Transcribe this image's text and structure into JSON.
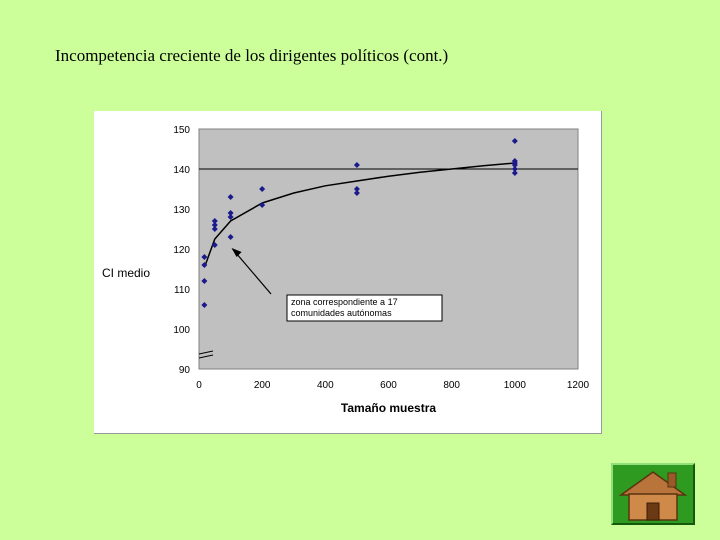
{
  "slide": {
    "title": "Incompetencia creciente de los dirigentes políticos (cont.)"
  },
  "chart_data": {
    "type": "scatter",
    "title": "",
    "xlabel": "Tamaño muestra",
    "ylabel": "CI medio",
    "xlim": [
      0,
      1200
    ],
    "ylim": [
      90,
      150
    ],
    "x_ticks": [
      0,
      200,
      400,
      600,
      800,
      1000,
      1200
    ],
    "y_ticks": [
      90,
      100,
      110,
      120,
      130,
      140,
      150
    ],
    "grid": false,
    "axis_break": true,
    "plot_background": "#c0c0c0",
    "marker_color": "#1a1a8c",
    "series": [
      {
        "points": [
          {
            "x": 17,
            "y": 118
          },
          {
            "x": 17,
            "y": 116
          },
          {
            "x": 17,
            "y": 112
          },
          {
            "x": 17,
            "y": 106
          },
          {
            "x": 50,
            "y": 127
          },
          {
            "x": 50,
            "y": 126
          },
          {
            "x": 50,
            "y": 125
          },
          {
            "x": 50,
            "y": 121
          },
          {
            "x": 100,
            "y": 133
          },
          {
            "x": 100,
            "y": 129
          },
          {
            "x": 100,
            "y": 128
          },
          {
            "x": 100,
            "y": 123
          },
          {
            "x": 200,
            "y": 135
          },
          {
            "x": 200,
            "y": 131
          },
          {
            "x": 500,
            "y": 141
          },
          {
            "x": 500,
            "y": 135
          },
          {
            "x": 500,
            "y": 134
          },
          {
            "x": 1000,
            "y": 147
          },
          {
            "x": 1000,
            "y": 142
          },
          {
            "x": 1000,
            "y": 141.5
          },
          {
            "x": 1000,
            "y": 141
          },
          {
            "x": 1000,
            "y": 140
          },
          {
            "x": 1000,
            "y": 139
          }
        ]
      }
    ],
    "trend_curve": [
      {
        "x": 20,
        "y": 116
      },
      {
        "x": 50,
        "y": 122.5
      },
      {
        "x": 100,
        "y": 127
      },
      {
        "x": 200,
        "y": 131.5
      },
      {
        "x": 300,
        "y": 134
      },
      {
        "x": 400,
        "y": 135.8
      },
      {
        "x": 500,
        "y": 137
      },
      {
        "x": 600,
        "y": 138.2
      },
      {
        "x": 700,
        "y": 139.2
      },
      {
        "x": 800,
        "y": 140
      },
      {
        "x": 900,
        "y": 140.8
      },
      {
        "x": 1000,
        "y": 141.5
      }
    ],
    "reference_line_y": 140,
    "annotation": {
      "lines": [
        "zona correspondiente a 17",
        "comunidades autónomas"
      ],
      "arrow_target": {
        "x": 100,
        "y": 120.5
      }
    }
  },
  "home_button": {
    "icon": "home-icon",
    "color": "#2e9a1f"
  }
}
